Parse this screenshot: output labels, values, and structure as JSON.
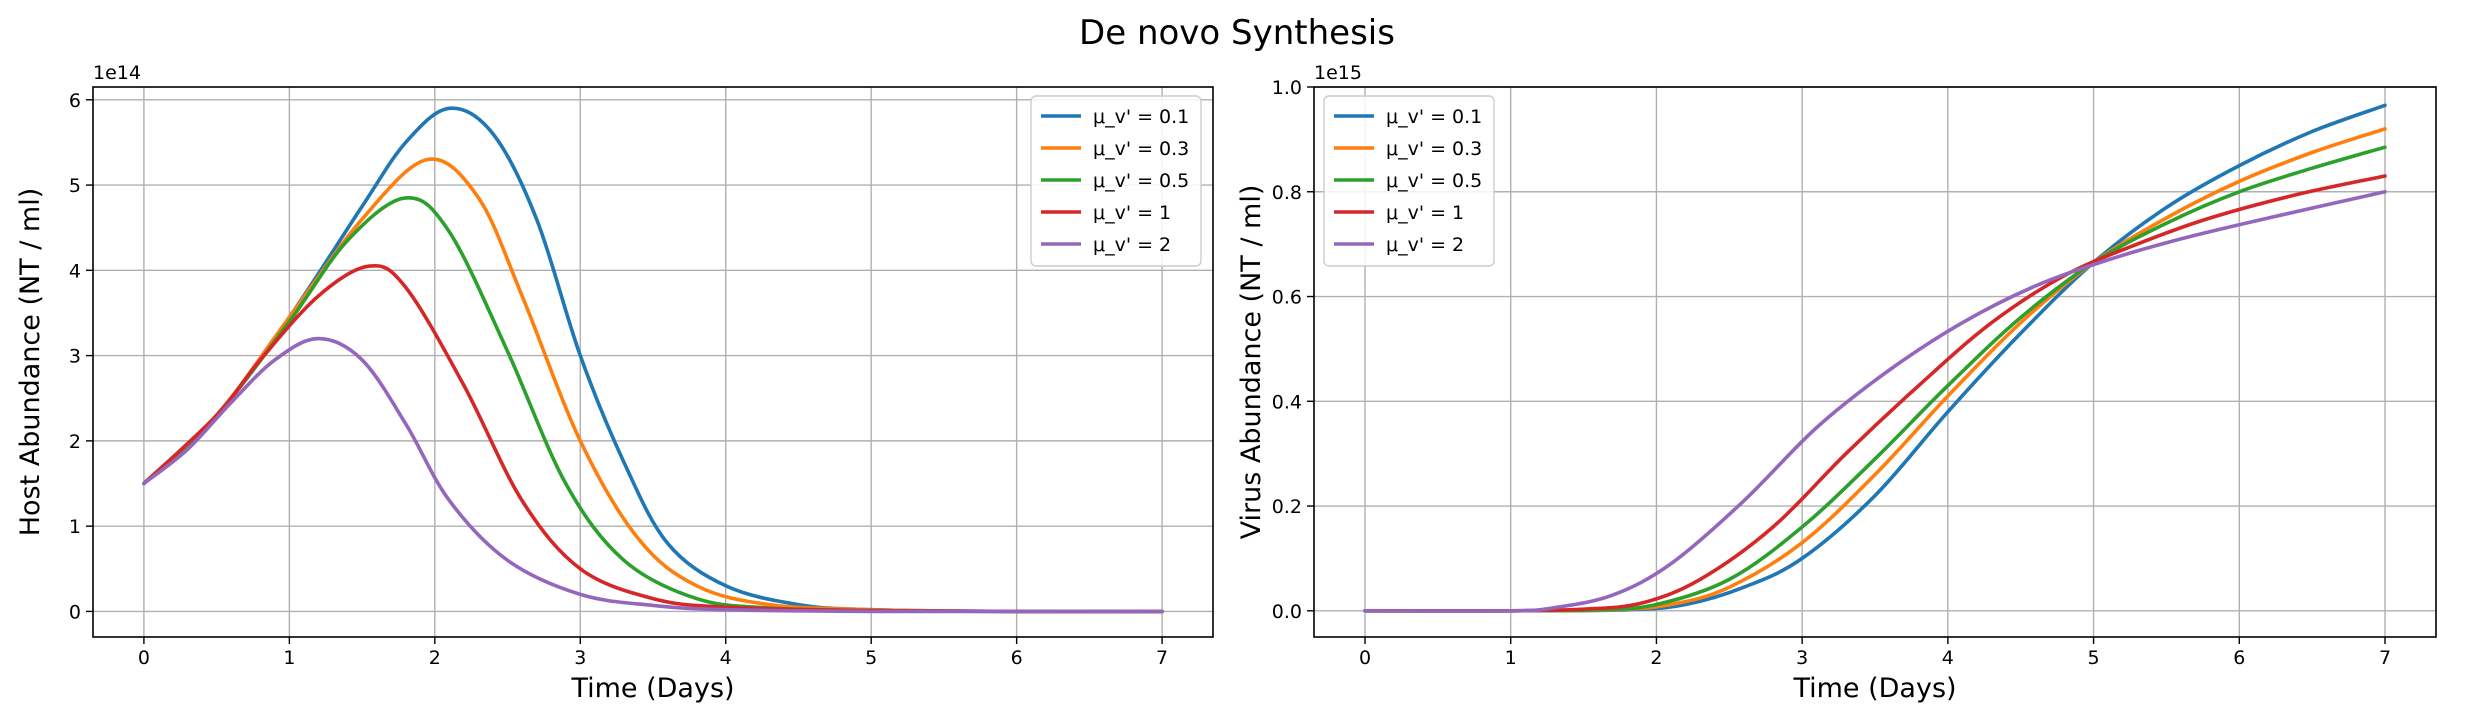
{
  "suptitle": "De novo Synthesis",
  "colors": {
    "mu01": "#1f77b4",
    "mu03": "#ff7f0e",
    "mu05": "#2ca02c",
    "mu1": "#d62728",
    "mu2": "#9467bd",
    "grid": "#b0b0b0"
  },
  "chart_data": [
    {
      "type": "line",
      "xlabel": "Time (Days)",
      "ylabel": "Host Abundance (NT / ml)",
      "offset_label": "1e14",
      "scale": 100000000000000.0,
      "xlim": [
        -0.35,
        7.35
      ],
      "ylim": [
        -0.3,
        6.15
      ],
      "xticks": [
        0,
        1,
        2,
        3,
        4,
        5,
        6,
        7
      ],
      "xtick_labels": [
        "0",
        "1",
        "2",
        "3",
        "4",
        "5",
        "6",
        "7"
      ],
      "yticks": [
        0,
        1,
        2,
        3,
        4,
        5,
        6
      ],
      "ytick_labels": [
        "0",
        "1",
        "2",
        "3",
        "4",
        "5",
        "6"
      ],
      "grid": true,
      "legend": "top-right",
      "series": [
        {
          "name": "μ_v' = 0.1",
          "color": "#1f77b4",
          "x": [
            0,
            0.5,
            1,
            1.5,
            1.8,
            2.1,
            2.4,
            2.7,
            3.0,
            3.3,
            3.6,
            4.0,
            4.5,
            5,
            6,
            7
          ],
          "y": [
            1.5,
            2.3,
            3.45,
            4.75,
            5.5,
            5.9,
            5.6,
            4.6,
            3.0,
            1.75,
            0.8,
            0.3,
            0.08,
            0.02,
            0,
            0
          ]
        },
        {
          "name": "μ_v' = 0.3",
          "color": "#ff7f0e",
          "x": [
            0,
            0.5,
            1,
            1.5,
            1.95,
            2.3,
            2.6,
            3.0,
            3.4,
            3.8,
            4.3,
            5,
            6,
            7
          ],
          "y": [
            1.5,
            2.3,
            3.45,
            4.6,
            5.3,
            4.85,
            3.7,
            2.0,
            0.85,
            0.3,
            0.08,
            0.02,
            0,
            0
          ]
        },
        {
          "name": "μ_v' = 0.5",
          "color": "#2ca02c",
          "x": [
            0,
            0.5,
            1,
            1.4,
            1.8,
            2.1,
            2.5,
            2.9,
            3.3,
            3.8,
            4.3,
            5,
            6,
            7
          ],
          "y": [
            1.5,
            2.3,
            3.4,
            4.35,
            4.85,
            4.45,
            3.05,
            1.5,
            0.6,
            0.15,
            0.04,
            0.01,
            0,
            0
          ]
        },
        {
          "name": "μ_v' = 1",
          "color": "#d62728",
          "x": [
            0,
            0.5,
            0.8,
            1.2,
            1.55,
            1.8,
            2.2,
            2.6,
            3.0,
            3.5,
            4.0,
            5,
            6,
            7
          ],
          "y": [
            1.5,
            2.3,
            2.95,
            3.7,
            4.05,
            3.8,
            2.65,
            1.3,
            0.5,
            0.15,
            0.05,
            0.01,
            0,
            0
          ]
        },
        {
          "name": "μ_v' = 2",
          "color": "#9467bd",
          "x": [
            0,
            0.3,
            0.6,
            0.9,
            1.2,
            1.5,
            1.8,
            2.1,
            2.5,
            3.0,
            3.5,
            4.0,
            5,
            6,
            7
          ],
          "y": [
            1.5,
            1.9,
            2.45,
            2.95,
            3.2,
            2.95,
            2.2,
            1.3,
            0.6,
            0.2,
            0.07,
            0.02,
            0,
            0,
            0
          ]
        }
      ]
    },
    {
      "type": "line",
      "xlabel": "Time (Days)",
      "ylabel": "Virus Abundance (NT / ml)",
      "offset_label": "1e15",
      "scale": 1000000000000000.0,
      "xlim": [
        -0.35,
        7.35
      ],
      "ylim": [
        -0.05,
        1.0
      ],
      "xticks": [
        0,
        1,
        2,
        3,
        4,
        5,
        6,
        7
      ],
      "xtick_labels": [
        "0",
        "1",
        "2",
        "3",
        "4",
        "5",
        "6",
        "7"
      ],
      "yticks": [
        0,
        0.2,
        0.4,
        0.6,
        0.8,
        1.0
      ],
      "ytick_labels": [
        "0.0",
        "0.2",
        "0.4",
        "0.6",
        "0.8",
        "1.0"
      ],
      "grid": true,
      "legend": "top-left",
      "series": [
        {
          "name": "μ_v' = 0.1",
          "color": "#1f77b4",
          "x": [
            0,
            1,
            1.8,
            2.2,
            2.6,
            3.0,
            3.5,
            4.0,
            4.5,
            5.0,
            5.5,
            6.0,
            6.5,
            7.0
          ],
          "y": [
            0,
            0,
            0.002,
            0.012,
            0.045,
            0.1,
            0.22,
            0.38,
            0.53,
            0.665,
            0.77,
            0.85,
            0.915,
            0.965
          ]
        },
        {
          "name": "μ_v' = 0.3",
          "color": "#ff7f0e",
          "x": [
            0,
            1,
            1.7,
            2.1,
            2.5,
            3.0,
            3.5,
            4.0,
            4.5,
            5.0,
            5.5,
            6.0,
            6.5,
            7.0
          ],
          "y": [
            0,
            0,
            0.002,
            0.012,
            0.045,
            0.13,
            0.26,
            0.41,
            0.55,
            0.665,
            0.75,
            0.82,
            0.875,
            0.92
          ]
        },
        {
          "name": "μ_v' = 0.5",
          "color": "#2ca02c",
          "x": [
            0,
            1,
            1.6,
            2.0,
            2.5,
            3.0,
            3.5,
            4.0,
            4.5,
            5.0,
            5.5,
            6.0,
            6.5,
            7.0
          ],
          "y": [
            0,
            0,
            0.002,
            0.012,
            0.06,
            0.16,
            0.29,
            0.43,
            0.56,
            0.665,
            0.74,
            0.8,
            0.845,
            0.885
          ]
        },
        {
          "name": "μ_v' = 1",
          "color": "#d62728",
          "x": [
            0,
            1,
            1.5,
            1.9,
            2.3,
            2.8,
            3.3,
            3.8,
            4.3,
            4.8,
            5.3,
            5.8,
            6.4,
            7.0
          ],
          "y": [
            0,
            0,
            0.003,
            0.015,
            0.06,
            0.16,
            0.3,
            0.43,
            0.55,
            0.64,
            0.7,
            0.75,
            0.795,
            0.83
          ]
        },
        {
          "name": "μ_v' = 2",
          "color": "#9467bd",
          "x": [
            0,
            1,
            1.3,
            1.7,
            2.1,
            2.6,
            3.1,
            3.6,
            4.1,
            4.6,
            5.1,
            5.6,
            6.2,
            7.0
          ],
          "y": [
            0,
            0,
            0.006,
            0.03,
            0.09,
            0.21,
            0.35,
            0.46,
            0.55,
            0.62,
            0.67,
            0.71,
            0.75,
            0.8
          ]
        }
      ]
    }
  ]
}
